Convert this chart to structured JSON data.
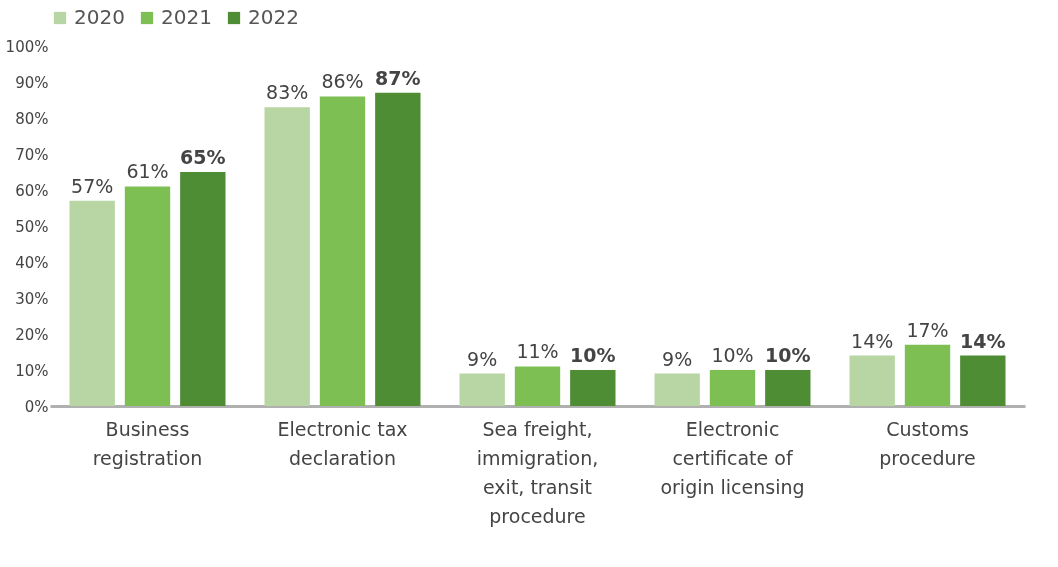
{
  "chart_data": {
    "type": "bar",
    "categories": [
      "Business registration",
      "Electronic tax declaration",
      "Sea freight, immigration, exit, transit procedure",
      "Electronic certificate of origin licensing",
      "Customs procedure"
    ],
    "series": [
      {
        "name": "2020",
        "color": "#b7d6a3",
        "values": [
          57,
          83,
          9,
          9,
          14
        ],
        "value_labels": [
          "57%",
          "83%",
          "9%",
          "9%",
          "14%"
        ]
      },
      {
        "name": "2021",
        "color": "#7dbf52",
        "values": [
          61,
          86,
          11,
          10,
          17
        ],
        "value_labels": [
          "61%",
          "86%",
          "11%",
          "10%",
          "17%"
        ]
      },
      {
        "name": "2022",
        "color": "#4f8d35",
        "values": [
          65,
          87,
          10,
          10,
          14
        ],
        "value_labels": [
          "65%",
          "87%",
          "10%",
          "10%",
          "14%"
        ]
      }
    ],
    "ylim": [
      0,
      100
    ],
    "yticks": [
      {
        "value": 0,
        "label": "0%"
      },
      {
        "value": 10,
        "label": "10%"
      },
      {
        "value": 20,
        "label": "20%"
      },
      {
        "value": 30,
        "label": "30%"
      },
      {
        "value": 40,
        "label": "40%"
      },
      {
        "value": 50,
        "label": "50%"
      },
      {
        "value": 60,
        "label": "60%"
      },
      {
        "value": 70,
        "label": "70%"
      },
      {
        "value": 80,
        "label": "80%"
      },
      {
        "value": 90,
        "label": "90%"
      },
      {
        "value": 100,
        "label": "100%"
      }
    ],
    "grid": false,
    "legend": "top"
  }
}
